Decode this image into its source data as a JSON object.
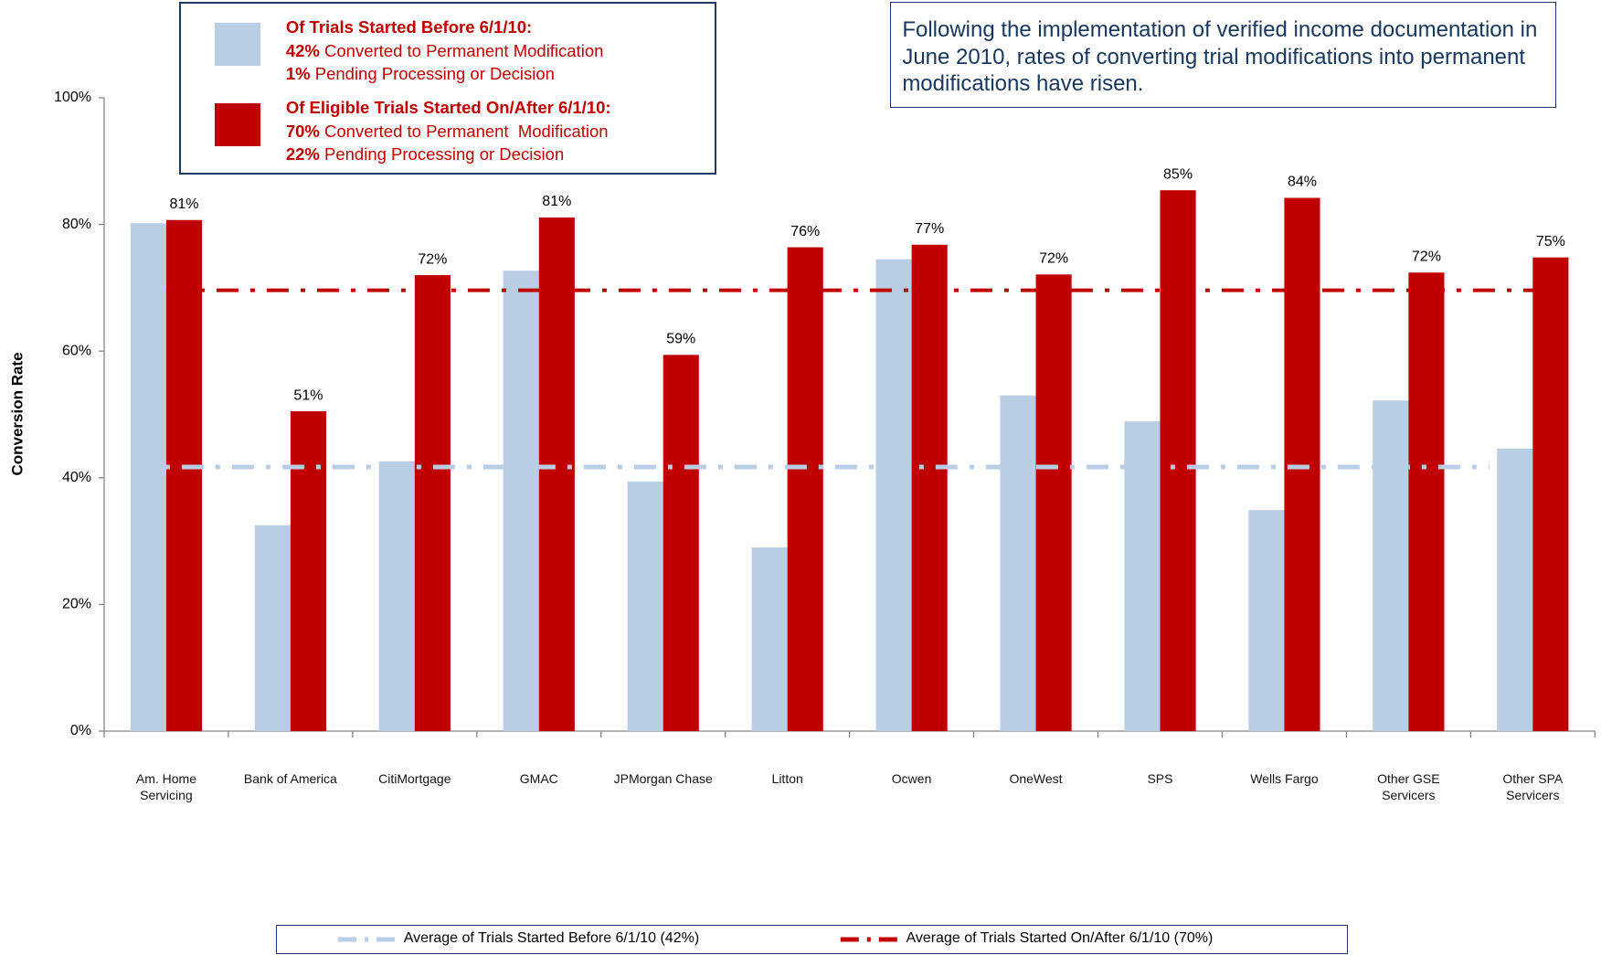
{
  "chart_data": {
    "type": "bar",
    "y_axis_label": "Conversion Rate",
    "categories": [
      "Am. Home\nServicing",
      "Bank of America",
      "CitiMortgage",
      "GMAC",
      "JPMorgan Chase",
      "Litton",
      "Ocwen",
      "OneWest",
      "SPS",
      "Wells Fargo",
      "Other GSE\nServicers",
      "Other SPA\nServicers"
    ],
    "series": [
      {
        "name": "Of Trials Started Before 6/1/10:",
        "color": "#b9cde5",
        "values": [
          80.2,
          32.5,
          42.6,
          72.7,
          39.4,
          29.0,
          74.5,
          53.0,
          48.9,
          34.9,
          52.2,
          44.6
        ],
        "details": [
          {
            "bold": "42%",
            "text": "Converted to Permanent Modification"
          },
          {
            "bold": "1%",
            "text": "Pending Processing or Decision"
          }
        ]
      },
      {
        "name": "Of Eligible Trials Started On/After 6/1/10:",
        "color": "#c00000",
        "values": [
          80.7,
          50.5,
          72.0,
          81.1,
          59.4,
          76.4,
          76.8,
          72.1,
          85.4,
          84.2,
          72.4,
          74.8
        ],
        "value_labels": [
          "81%",
          "51%",
          "72%",
          "81%",
          "59%",
          "76%",
          "77%",
          "72%",
          "85%",
          "84%",
          "72%",
          "75%"
        ],
        "details": [
          {
            "bold": "70%",
            "text": "Converted to Permanent  Modification"
          },
          {
            "bold": "22%",
            "text": "Pending Processing or Decision"
          }
        ]
      }
    ],
    "reference_lines": [
      {
        "label": "Average of Trials Started Before 6/1/10 (42%)",
        "value": 41.7,
        "color": "#b9cde5"
      },
      {
        "label": "Average of Trials Started On/After 6/1/10 (70%)",
        "value": 69.6,
        "color": "#c00000"
      }
    ],
    "annotation": "Following the implementation of verified income documentation in June 2010, rates of converting trial modifications into permanent modifications have risen.",
    "ylim": [
      0,
      100
    ],
    "yticks": [
      {
        "value": 0,
        "label": "0%"
      },
      {
        "value": 20,
        "label": "20%"
      },
      {
        "value": 40,
        "label": "40%"
      },
      {
        "value": 60,
        "label": "60%"
      },
      {
        "value": 80,
        "label": "80%"
      },
      {
        "value": 100,
        "label": "100%"
      }
    ],
    "grid": false
  }
}
